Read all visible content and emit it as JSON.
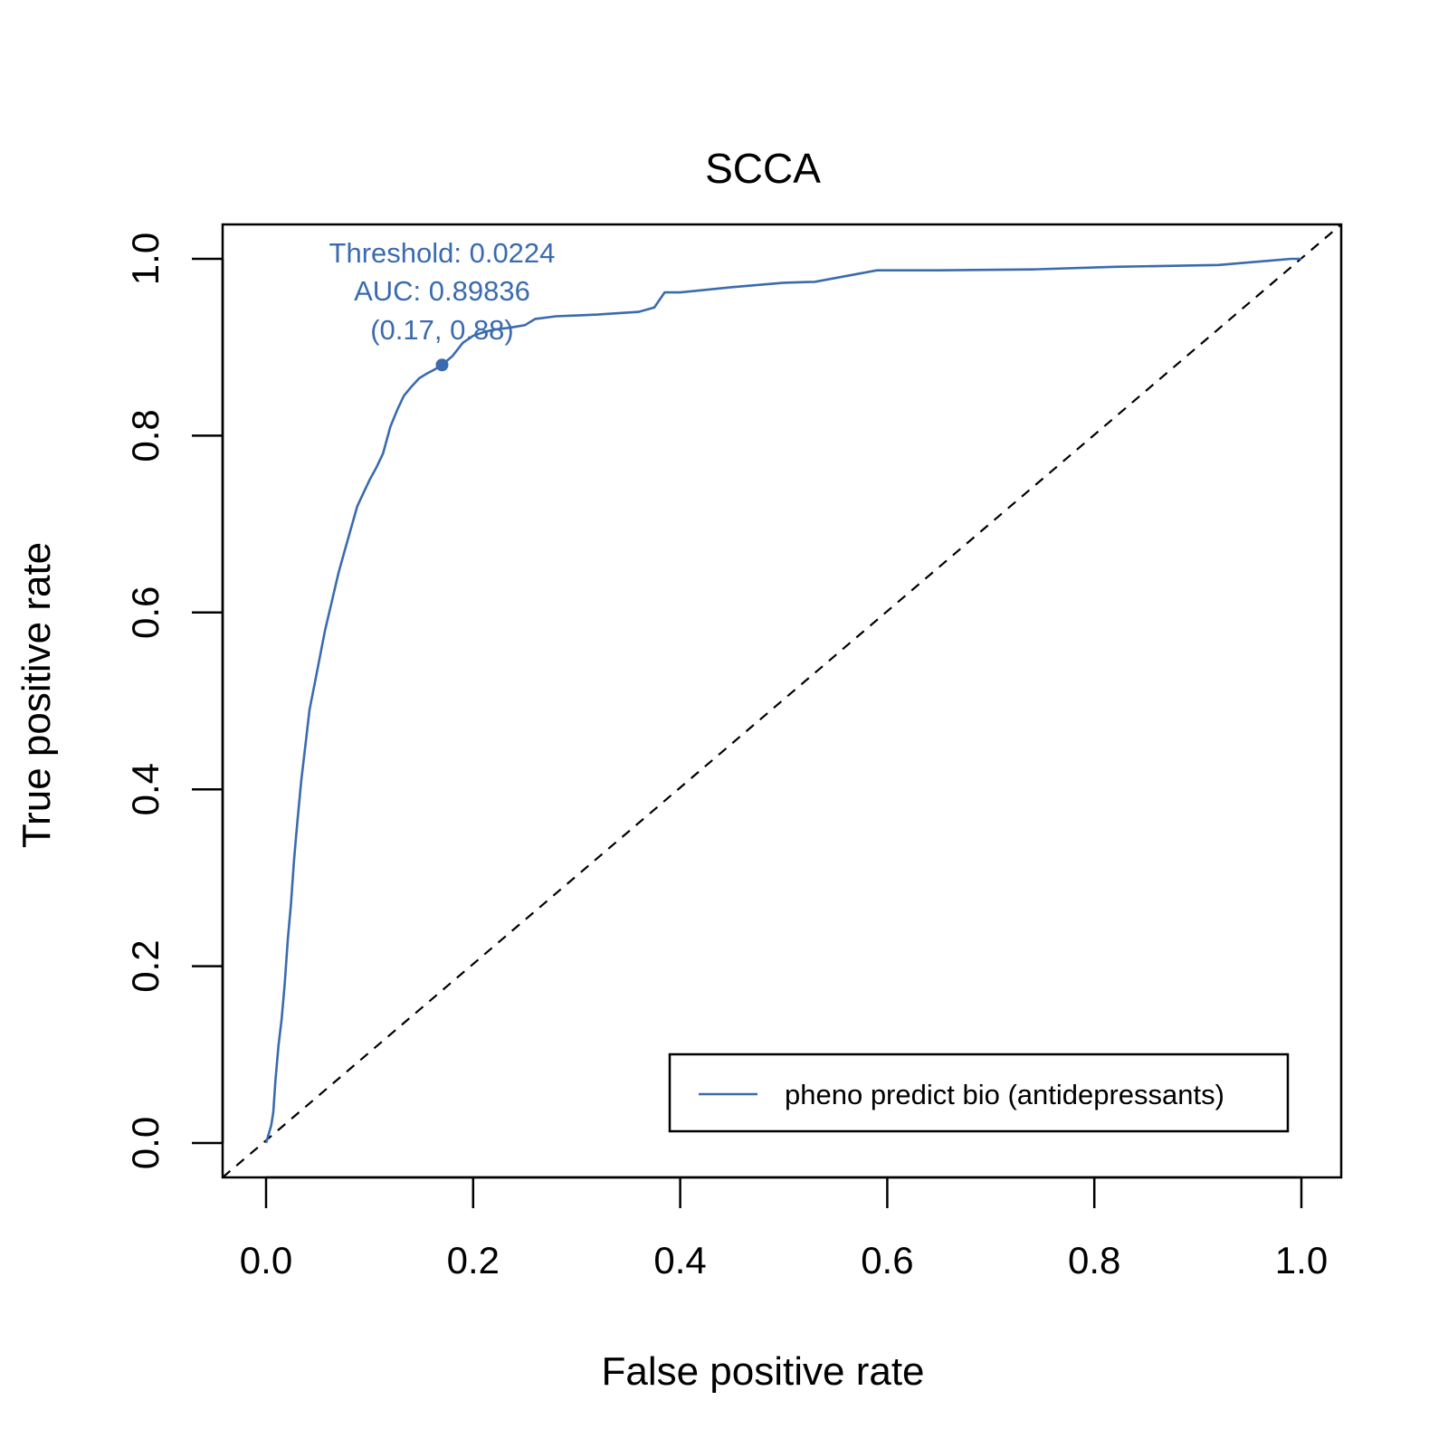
{
  "chart_data": {
    "type": "line",
    "title": "SCCA",
    "xlabel": "False positive rate",
    "ylabel": "True positive rate",
    "xlim": [
      0,
      1
    ],
    "ylim": [
      0,
      1
    ],
    "xticks": [
      "0.0",
      "0.2",
      "0.4",
      "0.6",
      "0.8",
      "1.0"
    ],
    "yticks": [
      "0.0",
      "0.2",
      "0.4",
      "0.6",
      "0.8",
      "1.0"
    ],
    "grid": false,
    "legend_position": "bottom-right",
    "colors": {
      "roc": "#3A6BAE",
      "diagonal": "#000000"
    },
    "series": [
      {
        "name": "pheno predict bio (antidepressants)",
        "x": [
          0.0,
          0.005,
          0.007,
          0.009,
          0.012,
          0.015,
          0.018,
          0.021,
          0.024,
          0.027,
          0.03,
          0.034,
          0.038,
          0.042,
          0.047,
          0.052,
          0.057,
          0.063,
          0.07,
          0.076,
          0.082,
          0.088,
          0.094,
          0.1,
          0.107,
          0.113,
          0.12,
          0.127,
          0.133,
          0.14,
          0.148,
          0.155,
          0.163,
          0.17,
          0.18,
          0.19,
          0.2,
          0.21,
          0.22,
          0.235,
          0.25,
          0.26,
          0.28,
          0.32,
          0.36,
          0.375,
          0.385,
          0.4,
          0.45,
          0.5,
          0.53,
          0.59,
          0.65,
          0.74,
          0.82,
          0.92,
          0.99,
          1.0
        ],
        "y": [
          0.0,
          0.02,
          0.035,
          0.07,
          0.11,
          0.14,
          0.18,
          0.23,
          0.27,
          0.32,
          0.36,
          0.41,
          0.45,
          0.49,
          0.52,
          0.55,
          0.58,
          0.61,
          0.645,
          0.67,
          0.695,
          0.72,
          0.735,
          0.75,
          0.765,
          0.78,
          0.81,
          0.83,
          0.845,
          0.855,
          0.865,
          0.87,
          0.875,
          0.88,
          0.89,
          0.905,
          0.913,
          0.917,
          0.92,
          0.922,
          0.925,
          0.932,
          0.935,
          0.937,
          0.94,
          0.945,
          0.962,
          0.962,
          0.968,
          0.973,
          0.974,
          0.987,
          0.987,
          0.988,
          0.991,
          0.993,
          1.0,
          1.0
        ]
      }
    ],
    "marker": {
      "x": 0.17,
      "y": 0.88
    },
    "annotations": {
      "threshold": "Threshold: 0.0224",
      "auc": "AUC: 0.89836",
      "point": "(0.17, 0.88)"
    }
  }
}
